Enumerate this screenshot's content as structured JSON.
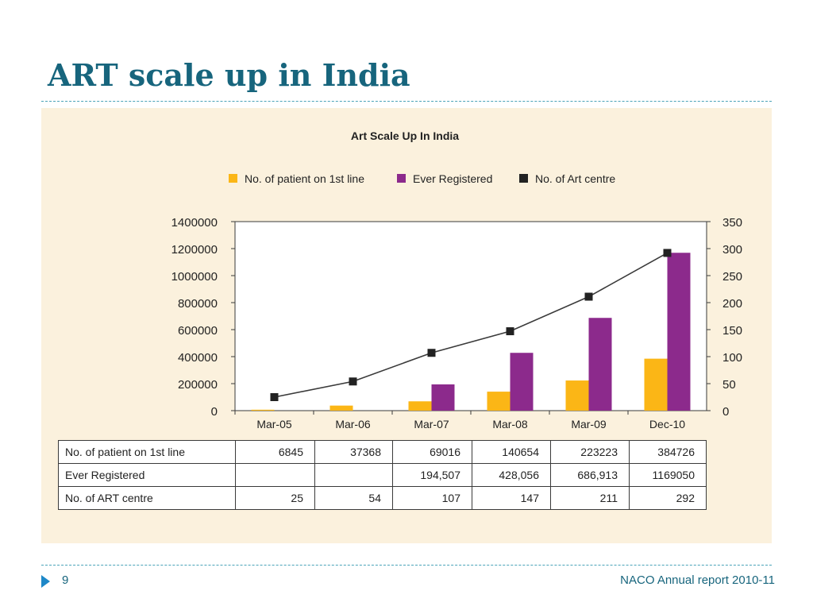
{
  "slide": {
    "title": "ART scale up in India",
    "page_number": "9",
    "source": "NACO Annual report 2010-11"
  },
  "colors": {
    "title": "#17657d",
    "panel_background": "#fbf1dd",
    "first_line": "#fbb616",
    "ever_registered": "#8c2a8c",
    "art_centres": "#222222",
    "accent": "#1e88c8"
  },
  "chart_data": {
    "type": "bar",
    "title": "Art Scale Up In India",
    "categories": [
      "Mar-05",
      "Mar-06",
      "Mar-07",
      "Mar-08",
      "Mar-09",
      "Dec-10"
    ],
    "series": [
      {
        "name": "No. of patient on 1st line",
        "type": "bar",
        "axis": "left",
        "color": "#fbb616",
        "values": [
          6845,
          37368,
          69016,
          140654,
          223223,
          384726
        ]
      },
      {
        "name": "Ever Registered",
        "type": "bar",
        "axis": "left",
        "color": "#8c2a8c",
        "values": [
          null,
          null,
          194507,
          428056,
          686913,
          1169050
        ]
      },
      {
        "name": "No. of Art centre",
        "type": "line",
        "axis": "right",
        "color": "#222222",
        "values": [
          25,
          54,
          107,
          147,
          211,
          292
        ]
      }
    ],
    "ylim": [
      0,
      1400000
    ],
    "y2lim": [
      0,
      350
    ],
    "yticks": [
      "0",
      "200000",
      "400000",
      "600000",
      "800000",
      "1000000",
      "1200000",
      "1400000"
    ],
    "y2ticks": [
      "0",
      "50",
      "100",
      "150",
      "200",
      "250",
      "300",
      "350"
    ],
    "legend": "top",
    "grid": false
  },
  "table": {
    "rows": [
      {
        "label": "No. of patient on 1st line",
        "cells": [
          "6845",
          "37368",
          "69016",
          "140654",
          "223223",
          "384726"
        ]
      },
      {
        "label": "Ever Registered",
        "cells": [
          "",
          "",
          "194,507",
          "428,056",
          "686,913",
          "1169050"
        ]
      },
      {
        "label": "No. of ART centre",
        "cells": [
          "25",
          "54",
          "107",
          "147",
          "211",
          "292"
        ]
      }
    ]
  }
}
